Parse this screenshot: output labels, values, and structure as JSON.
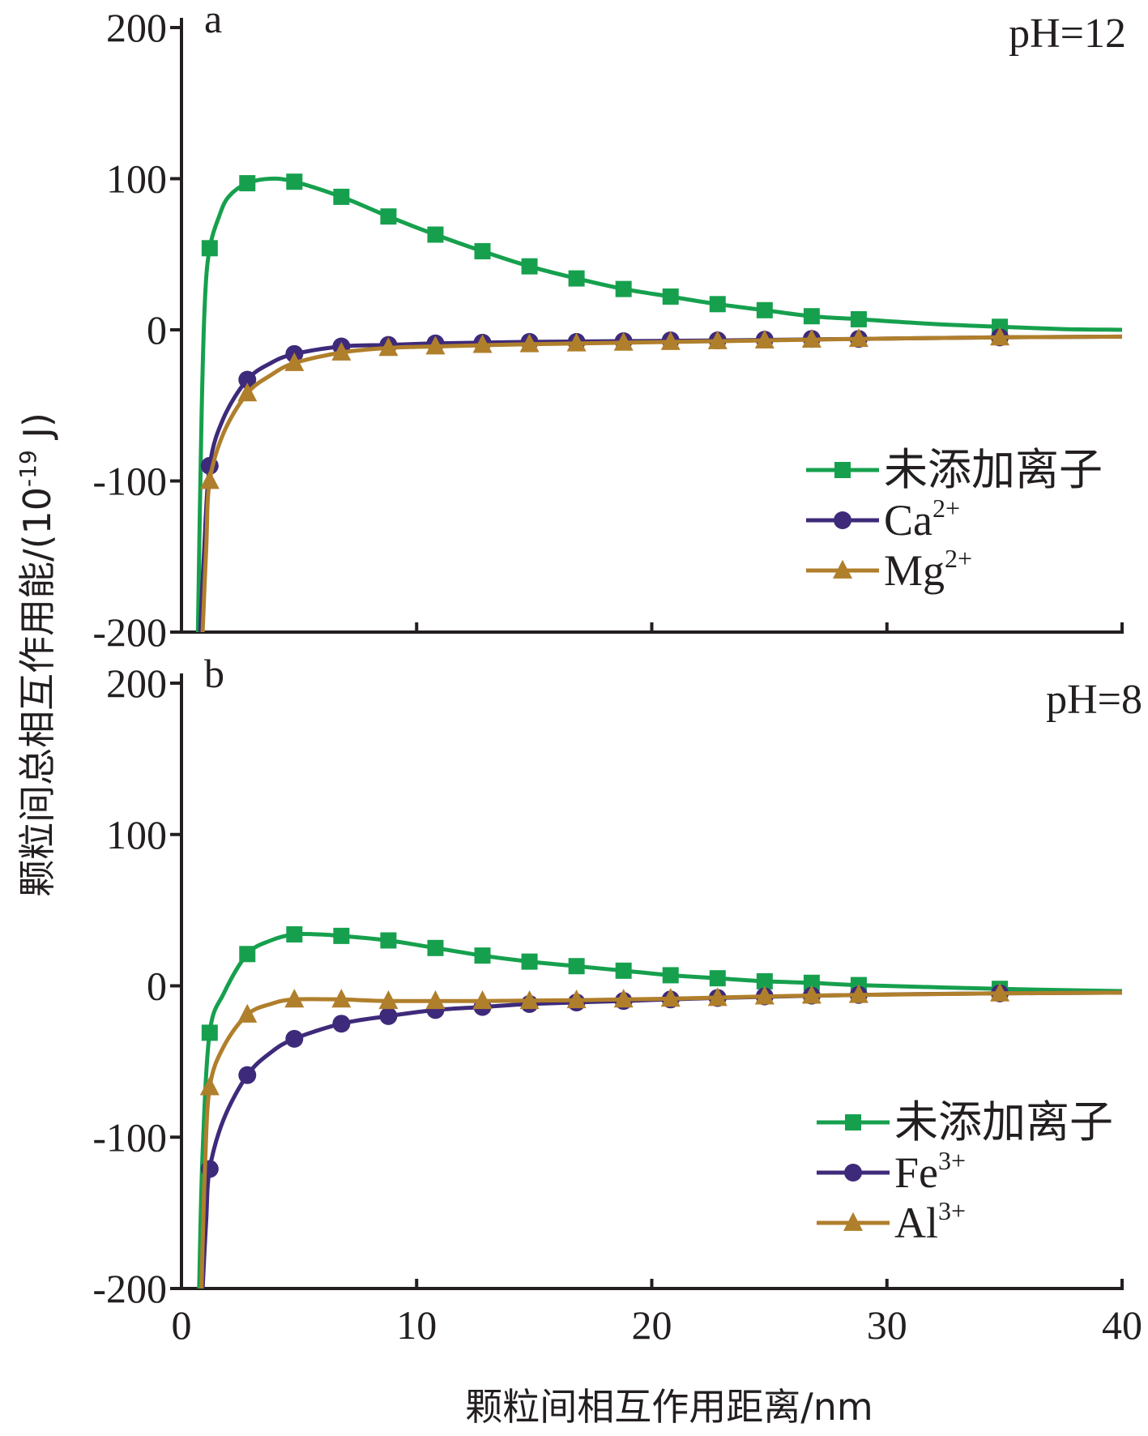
{
  "colors": {
    "green": "#16a04e",
    "purple": "#3e2a7a",
    "brown": "#b07f2c",
    "axis": "#231f20"
  },
  "axes": {
    "xlabel": "颗粒间相互作用距离/nm",
    "ylabel": "颗粒间总相互作用能/(10-19 J)",
    "ylabel_main": "颗粒间总相互作用能/(10",
    "ylabel_exp": "-19",
    "ylabel_tail": " J)",
    "x_ticks": [
      "0",
      "10",
      "20",
      "30",
      "40"
    ],
    "y_ticks": [
      "-200",
      "-100",
      "0",
      "100",
      "200"
    ]
  },
  "chart_data": [
    {
      "type": "line",
      "panel": "a",
      "annotation": "pH=12",
      "xlim": [
        0,
        40
      ],
      "ylim": [
        -200,
        200
      ],
      "legend_position": "center-right",
      "series": [
        {
          "name": "未添加离子",
          "color": "#16a04e",
          "marker": "square",
          "points": [
            [
              1.2,
              54
            ],
            [
              2.8,
              97
            ],
            [
              4.8,
              98
            ],
            [
              6.8,
              88
            ],
            [
              8.8,
              75
            ],
            [
              10.8,
              63
            ],
            [
              12.8,
              52
            ],
            [
              14.8,
              42
            ],
            [
              16.8,
              34
            ],
            [
              18.8,
              27
            ],
            [
              20.8,
              22
            ],
            [
              22.8,
              17
            ],
            [
              24.8,
              13
            ],
            [
              26.8,
              9
            ],
            [
              28.8,
              7
            ],
            [
              34.8,
              2
            ]
          ],
          "curve": [
            [
              0.7,
              -200
            ],
            [
              0.85,
              -60
            ],
            [
              1.0,
              20
            ],
            [
              1.2,
              54
            ],
            [
              1.6,
              75
            ],
            [
              2.0,
              88
            ],
            [
              2.8,
              97
            ],
            [
              3.8,
              100
            ],
            [
              4.8,
              98
            ],
            [
              6.8,
              88
            ],
            [
              8.8,
              75
            ],
            [
              10.8,
              63
            ],
            [
              12.8,
              52
            ],
            [
              14.8,
              42
            ],
            [
              16.8,
              34
            ],
            [
              18.8,
              27
            ],
            [
              20.8,
              22
            ],
            [
              22.8,
              17
            ],
            [
              24.8,
              13
            ],
            [
              26.8,
              9
            ],
            [
              28.8,
              7
            ],
            [
              31.8,
              4
            ],
            [
              34.8,
              2
            ],
            [
              37.5,
              0.5
            ],
            [
              40,
              0
            ]
          ]
        },
        {
          "name": "Ca",
          "superscript": "2+",
          "color": "#3e2a7a",
          "marker": "circle",
          "points": [
            [
              1.2,
              -90
            ],
            [
              2.8,
              -33
            ],
            [
              4.8,
              -16
            ],
            [
              6.8,
              -11
            ],
            [
              8.8,
              -10
            ],
            [
              10.8,
              -9
            ],
            [
              12.8,
              -8.5
            ],
            [
              14.8,
              -8
            ],
            [
              16.8,
              -8
            ],
            [
              18.8,
              -7.5
            ],
            [
              20.8,
              -7
            ],
            [
              22.8,
              -7
            ],
            [
              24.8,
              -6.5
            ],
            [
              26.8,
              -6
            ],
            [
              28.8,
              -6
            ],
            [
              34.8,
              -5
            ]
          ],
          "curve": [
            [
              0.8,
              -200
            ],
            [
              0.95,
              -150
            ],
            [
              1.2,
              -90
            ],
            [
              1.8,
              -58
            ],
            [
              2.8,
              -33
            ],
            [
              3.8,
              -22
            ],
            [
              4.8,
              -16
            ],
            [
              6.8,
              -11
            ],
            [
              8.8,
              -10
            ],
            [
              10.8,
              -9
            ],
            [
              14.8,
              -8
            ],
            [
              18.8,
              -7.5
            ],
            [
              22.8,
              -7
            ],
            [
              28.8,
              -6
            ],
            [
              34.8,
              -5
            ],
            [
              40,
              -4.5
            ]
          ]
        },
        {
          "name": "Mg",
          "superscript": "2+",
          "color": "#b07f2c",
          "marker": "triangle",
          "points": [
            [
              1.2,
              -100
            ],
            [
              2.8,
              -42
            ],
            [
              4.8,
              -22
            ],
            [
              6.8,
              -15
            ],
            [
              8.8,
              -12
            ],
            [
              10.8,
              -11
            ],
            [
              12.8,
              -10
            ],
            [
              14.8,
              -9.5
            ],
            [
              16.8,
              -9
            ],
            [
              18.8,
              -8.5
            ],
            [
              20.8,
              -8
            ],
            [
              22.8,
              -7.5
            ],
            [
              24.8,
              -7
            ],
            [
              26.8,
              -6.5
            ],
            [
              28.8,
              -6
            ],
            [
              34.8,
              -5
            ]
          ],
          "curve": [
            [
              0.9,
              -200
            ],
            [
              1.05,
              -145
            ],
            [
              1.2,
              -100
            ],
            [
              1.8,
              -68
            ],
            [
              2.8,
              -42
            ],
            [
              3.8,
              -30
            ],
            [
              4.8,
              -22
            ],
            [
              6.8,
              -15
            ],
            [
              8.8,
              -12
            ],
            [
              10.8,
              -11
            ],
            [
              14.8,
              -9.5
            ],
            [
              18.8,
              -8.5
            ],
            [
              22.8,
              -7.5
            ],
            [
              28.8,
              -6
            ],
            [
              34.8,
              -5
            ],
            [
              40,
              -4.5
            ]
          ]
        }
      ]
    },
    {
      "type": "line",
      "panel": "b",
      "annotation": "pH=8",
      "xlim": [
        0,
        40
      ],
      "ylim": [
        -200,
        200
      ],
      "legend_position": "bottom-right",
      "series": [
        {
          "name": "未添加离子",
          "color": "#16a04e",
          "marker": "square",
          "points": [
            [
              1.2,
              -31
            ],
            [
              2.8,
              21
            ],
            [
              4.8,
              34
            ],
            [
              6.8,
              33
            ],
            [
              8.8,
              30
            ],
            [
              10.8,
              25
            ],
            [
              12.8,
              20
            ],
            [
              14.8,
              16
            ],
            [
              16.8,
              13
            ],
            [
              18.8,
              10
            ],
            [
              20.8,
              7
            ],
            [
              22.8,
              5
            ],
            [
              24.8,
              3
            ],
            [
              26.8,
              2
            ],
            [
              28.8,
              0.5
            ],
            [
              34.8,
              -2
            ]
          ],
          "curve": [
            [
              0.75,
              -200
            ],
            [
              0.9,
              -110
            ],
            [
              1.2,
              -31
            ],
            [
              1.8,
              -5
            ],
            [
              2.8,
              21
            ],
            [
              3.8,
              30
            ],
            [
              4.8,
              34
            ],
            [
              5.8,
              34
            ],
            [
              6.8,
              33
            ],
            [
              8.8,
              30
            ],
            [
              10.8,
              25
            ],
            [
              12.8,
              20
            ],
            [
              14.8,
              16
            ],
            [
              16.8,
              13
            ],
            [
              18.8,
              10
            ],
            [
              20.8,
              7
            ],
            [
              22.8,
              5
            ],
            [
              24.8,
              3
            ],
            [
              26.8,
              2
            ],
            [
              28.8,
              0.5
            ],
            [
              34.8,
              -2
            ],
            [
              40,
              -3.5
            ]
          ]
        },
        {
          "name": "Fe",
          "superscript": "3+",
          "color": "#3e2a7a",
          "marker": "circle",
          "points": [
            [
              1.2,
              -121
            ],
            [
              2.8,
              -59
            ],
            [
              4.8,
              -35
            ],
            [
              6.8,
              -25
            ],
            [
              8.8,
              -20
            ],
            [
              10.8,
              -16
            ],
            [
              12.8,
              -14
            ],
            [
              14.8,
              -12
            ],
            [
              16.8,
              -11
            ],
            [
              18.8,
              -10
            ],
            [
              20.8,
              -9
            ],
            [
              22.8,
              -8
            ],
            [
              24.8,
              -7
            ],
            [
              26.8,
              -6.5
            ],
            [
              28.8,
              -6
            ],
            [
              34.8,
              -5
            ]
          ],
          "curve": [
            [
              0.9,
              -200
            ],
            [
              1.05,
              -155
            ],
            [
              1.2,
              -121
            ],
            [
              1.8,
              -88
            ],
            [
              2.8,
              -59
            ],
            [
              3.8,
              -44
            ],
            [
              4.8,
              -35
            ],
            [
              6.8,
              -25
            ],
            [
              8.8,
              -20
            ],
            [
              10.8,
              -16
            ],
            [
              12.8,
              -14
            ],
            [
              14.8,
              -12
            ],
            [
              18.8,
              -10
            ],
            [
              22.8,
              -8
            ],
            [
              28.8,
              -6
            ],
            [
              34.8,
              -5
            ],
            [
              40,
              -4.5
            ]
          ]
        },
        {
          "name": "Al",
          "superscript": "3+",
          "color": "#b07f2c",
          "marker": "triangle",
          "points": [
            [
              1.2,
              -67
            ],
            [
              2.8,
              -19
            ],
            [
              4.8,
              -9
            ],
            [
              6.8,
              -9
            ],
            [
              8.8,
              -10
            ],
            [
              10.8,
              -10
            ],
            [
              12.8,
              -10
            ],
            [
              14.8,
              -10
            ],
            [
              16.8,
              -9.5
            ],
            [
              18.8,
              -9
            ],
            [
              20.8,
              -8.5
            ],
            [
              22.8,
              -8
            ],
            [
              24.8,
              -7
            ],
            [
              26.8,
              -6.5
            ],
            [
              28.8,
              -6
            ],
            [
              34.8,
              -5
            ]
          ],
          "curve": [
            [
              0.85,
              -200
            ],
            [
              1.0,
              -120
            ],
            [
              1.2,
              -67
            ],
            [
              1.8,
              -40
            ],
            [
              2.8,
              -19
            ],
            [
              3.8,
              -12
            ],
            [
              4.8,
              -9
            ],
            [
              6.8,
              -9
            ],
            [
              8.8,
              -10
            ],
            [
              12.8,
              -10
            ],
            [
              16.8,
              -9.5
            ],
            [
              20.8,
              -8.5
            ],
            [
              24.8,
              -7
            ],
            [
              28.8,
              -6
            ],
            [
              34.8,
              -5
            ],
            [
              40,
              -4.5
            ]
          ]
        }
      ]
    }
  ]
}
